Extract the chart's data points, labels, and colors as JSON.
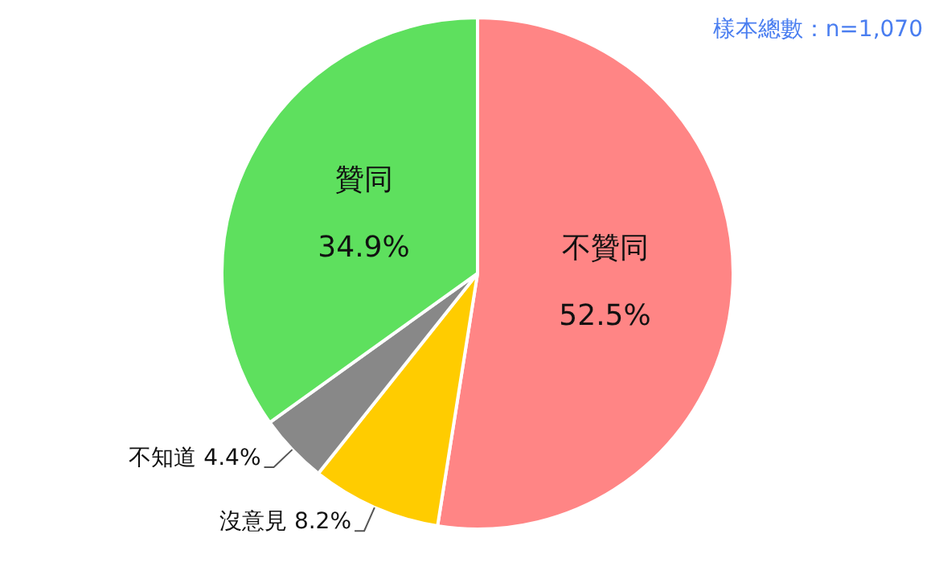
{
  "chart_data": {
    "type": "pie",
    "categories": [
      "不贊同",
      "沒意見",
      "不知道",
      "贊同"
    ],
    "values": [
      52.5,
      8.2,
      4.4,
      34.9
    ],
    "value_labels": [
      "52.5%",
      "8.2%",
      "4.4%",
      "34.9%"
    ],
    "colors": [
      "#ff8585",
      "#ffcc00",
      "#888888",
      "#5ee05e"
    ],
    "annotations": [
      "樣本總數：n=1,070"
    ],
    "legend": false
  }
}
